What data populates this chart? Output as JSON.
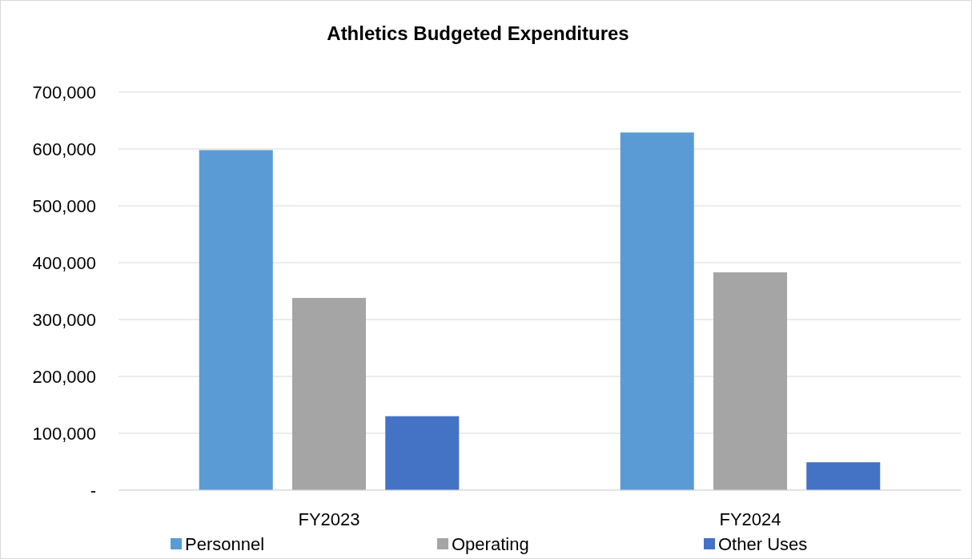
{
  "chart_data": {
    "type": "bar",
    "title": "Athletics Budgeted Expenditures",
    "categories": [
      "FY2023",
      "FY2024"
    ],
    "series": [
      {
        "name": "Personnel",
        "color": "#5b9bd5",
        "values": [
          598000,
          629000
        ]
      },
      {
        "name": "Operating",
        "color": "#a5a5a5",
        "values": [
          338000,
          383000
        ]
      },
      {
        "name": "Other Uses",
        "color": "#4472c4",
        "values": [
          130000,
          49000
        ]
      }
    ],
    "ylim": [
      0,
      700000
    ],
    "yticks": [
      {
        "value": 0,
        "label": "-"
      },
      {
        "value": 100000,
        "label": "100,000"
      },
      {
        "value": 200000,
        "label": "200,000"
      },
      {
        "value": 300000,
        "label": "300,000"
      },
      {
        "value": 400000,
        "label": "400,000"
      },
      {
        "value": 500000,
        "label": "500,000"
      },
      {
        "value": 600000,
        "label": "600,000"
      },
      {
        "value": 700000,
        "label": "700,000"
      }
    ],
    "grid": "y",
    "legend": "bottom"
  }
}
